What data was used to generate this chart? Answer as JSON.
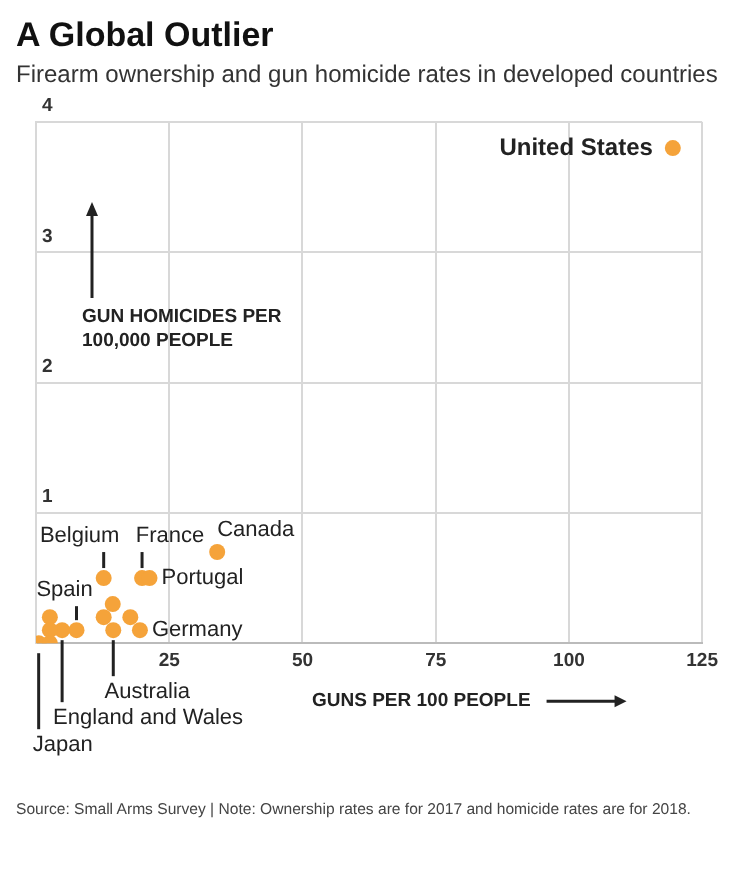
{
  "chart_data": {
    "type": "scatter",
    "title": "A Global Outlier",
    "subtitle": "Firearm ownership and gun homicide rates in developed countries",
    "xlabel": "GUNS PER 100 PEOPLE",
    "ylabel": "GUN HOMICIDES PER 100,000 PEOPLE",
    "series": [
      {
        "color": "#f5a33a",
        "x": [
          119.5,
          34,
          12.7,
          19.9,
          21.3,
          7.6,
          19.5,
          14.5,
          4.9,
          0.5,
          2.6,
          2.6,
          2.6,
          14.4,
          12.7,
          17.7
        ],
        "values": [
          3.8,
          0.7,
          0.5,
          0.5,
          0.5,
          0.1,
          0.1,
          0.1,
          0.1,
          0,
          0.2,
          0.1,
          0,
          0.3,
          0.2,
          0.2
        ]
      }
    ],
    "xlim": [
      0,
      125
    ],
    "xticks": [
      25,
      50,
      75,
      100,
      125
    ],
    "ylim": [
      0,
      4
    ],
    "yticks": [
      1,
      2,
      3,
      4
    ],
    "grid": true,
    "legend": false,
    "marker": "circle",
    "annotations": [
      {
        "text": "United States",
        "x": 119.5,
        "y": 3.8
      },
      {
        "text": "Canada",
        "x": 34,
        "y": 0.7
      },
      {
        "text": "Belgium",
        "x": 12.7,
        "y": 0.5
      },
      {
        "text": "France",
        "x": 19.9,
        "y": 0.5
      },
      {
        "text": "Portugal",
        "x": 21.3,
        "y": 0.5
      },
      {
        "text": "Spain",
        "x": 7.6,
        "y": 0.1
      },
      {
        "text": "Germany",
        "x": 19.5,
        "y": 0.1
      },
      {
        "text": "Australia",
        "x": 14.5,
        "y": 0.1
      },
      {
        "text": "England and Wales",
        "x": 4.9,
        "y": 0.1
      },
      {
        "text": "Japan",
        "x": 0.5,
        "y": 0
      },
      "Source: Small Arms Survey | Note: Ownership rates are for 2017 and homicide rates are for 2018."
    ]
  }
}
